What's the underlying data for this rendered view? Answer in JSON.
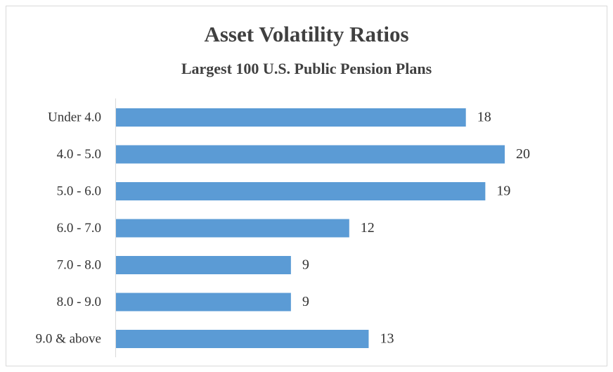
{
  "chart_data": {
    "type": "bar",
    "orientation": "horizontal",
    "title": "Asset Volatility Ratios",
    "subtitle": "Largest 100 U.S. Public Pension Plans",
    "categories": [
      "Under 4.0",
      "4.0 - 5.0",
      "5.0 - 6.0",
      "6.0 - 7.0",
      "7.0 - 8.0",
      "8.0 - 9.0",
      "9.0 & above"
    ],
    "values": [
      18,
      20,
      19,
      12,
      9,
      9,
      13
    ],
    "color": "#5b9bd5"
  }
}
